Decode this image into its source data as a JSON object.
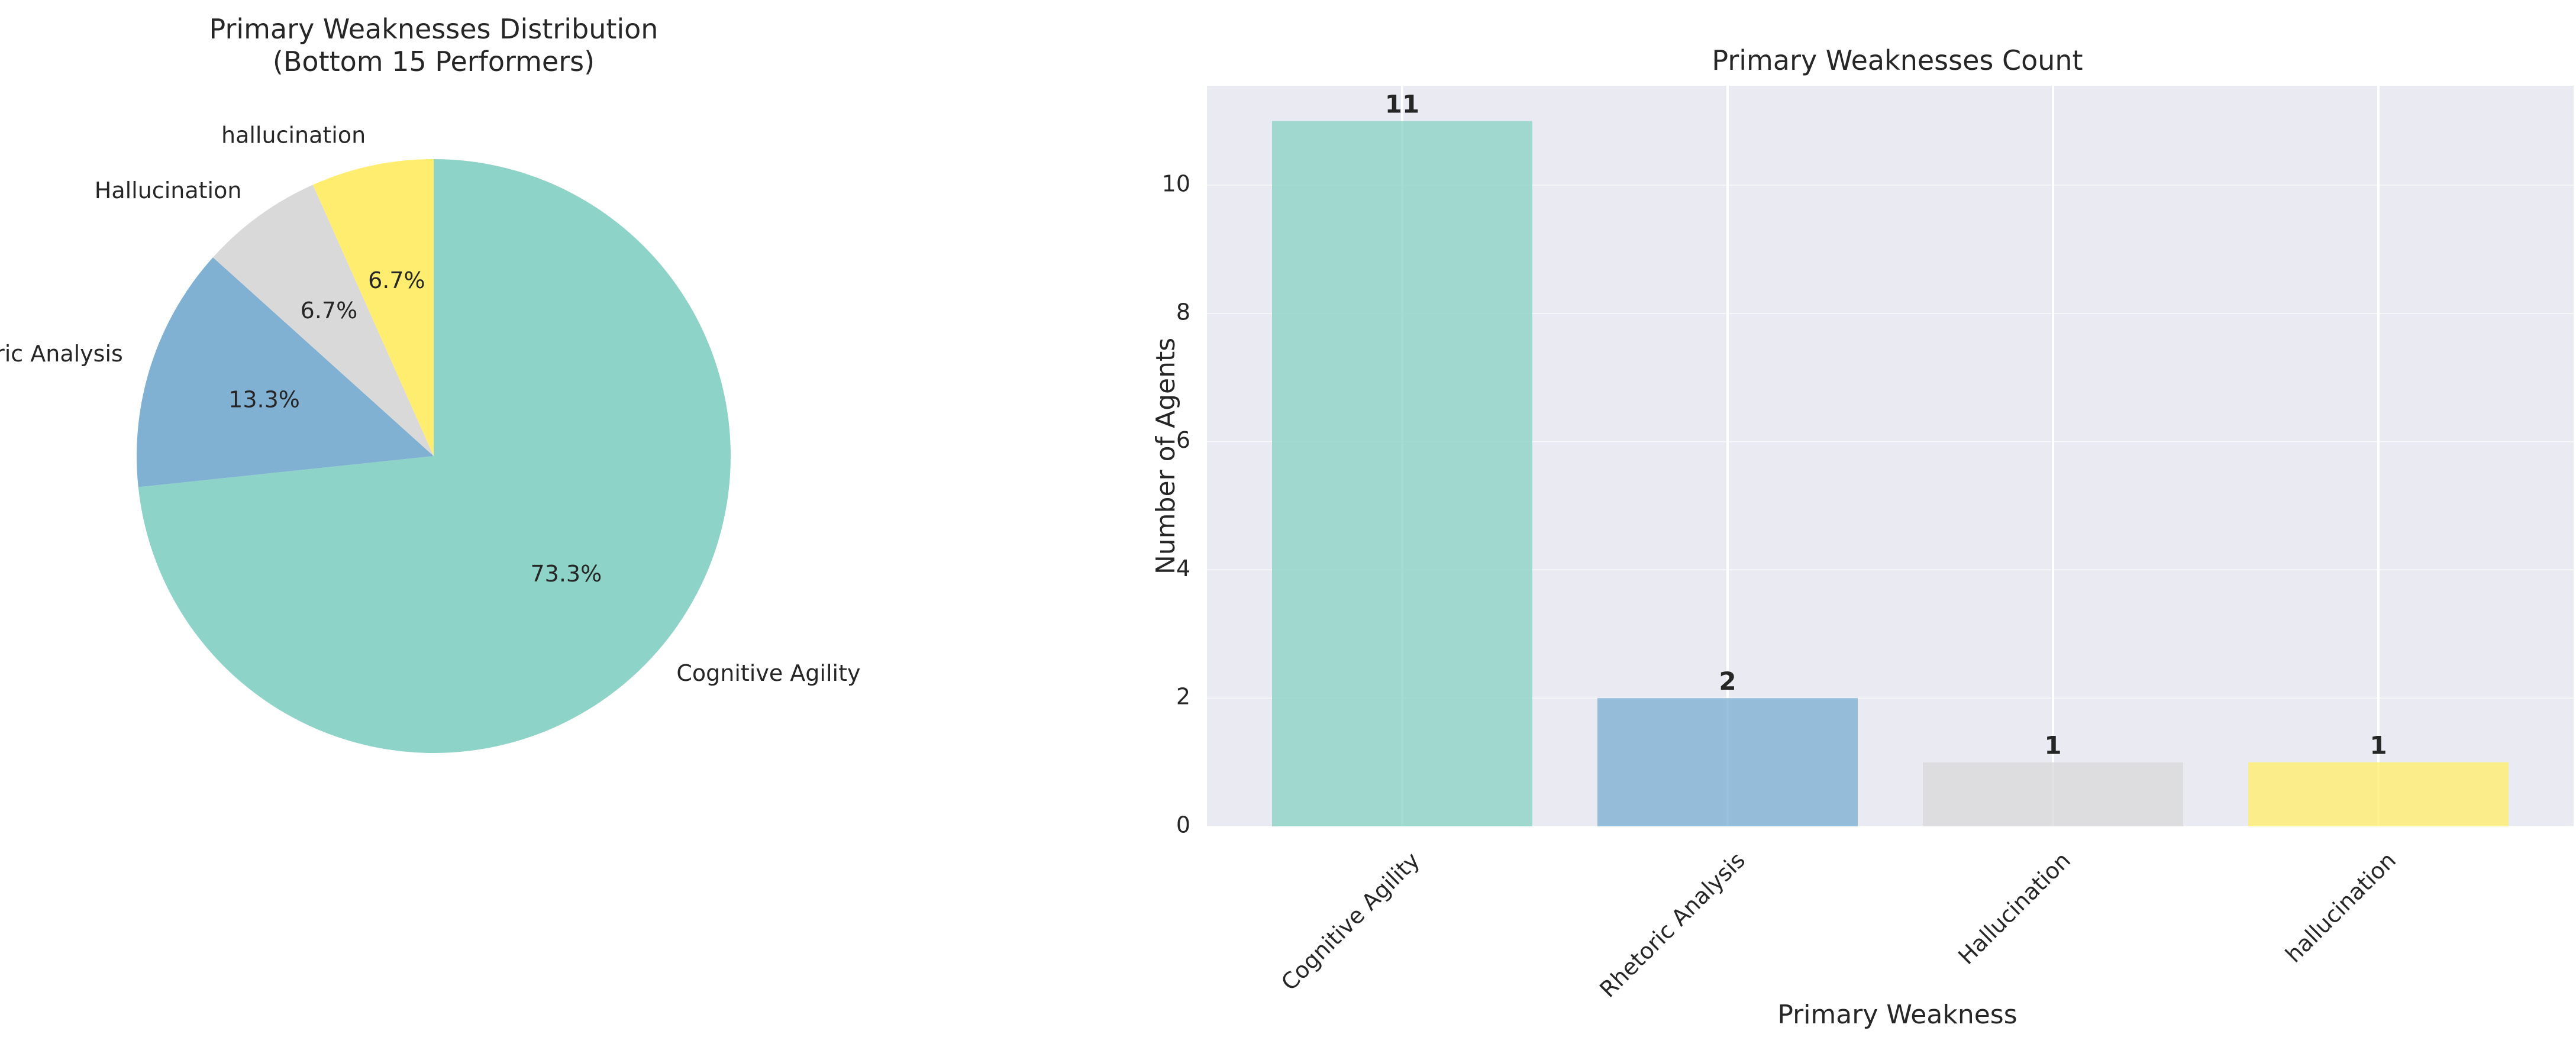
{
  "chart_data": [
    {
      "type": "pie",
      "title": "Primary Weaknesses Distribution\n(Bottom 15 Performers)",
      "start_angle": 90,
      "counterclock": false,
      "slices": [
        {
          "label": "Cognitive Agility",
          "value": 11,
          "pct_label": "73.3%",
          "color": "#8dd3c7"
        },
        {
          "label": "Rhetoric Analysis",
          "value": 2,
          "pct_label": "13.3%",
          "color": "#80b1d3"
        },
        {
          "label": "Hallucination",
          "value": 1,
          "pct_label": "6.7%",
          "color": "#d9d9d9"
        },
        {
          "label": "hallucination",
          "value": 1,
          "pct_label": "6.7%",
          "color": "#ffed6f"
        }
      ]
    },
    {
      "type": "bar",
      "title": "Primary Weaknesses Count",
      "xlabel": "Primary Weakness",
      "ylabel": "Number of Agents",
      "categories": [
        "Cognitive Agility",
        "Rhetoric Analysis",
        "Hallucination",
        "hallucination"
      ],
      "values": [
        11,
        2,
        1,
        1
      ],
      "value_labels": [
        "11",
        "2",
        "1",
        "1"
      ],
      "colors": [
        "#8dd3c7",
        "#80b1d3",
        "#d9d9d9",
        "#ffed6f"
      ],
      "ylim": [
        0,
        11.55
      ],
      "yticks": [
        0,
        2,
        4,
        6,
        8,
        10
      ],
      "grid": true,
      "background": "#eaeaf2"
    }
  ]
}
